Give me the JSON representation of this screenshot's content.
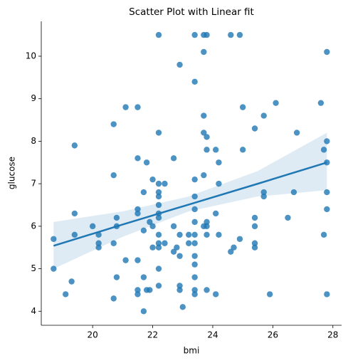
{
  "chart_data": {
    "type": "scatter",
    "title": "Scatter Plot with Linear fit",
    "xlabel": "bmi",
    "ylabel": "glucose",
    "color": "#1f77b4",
    "x": [
      18.7,
      18.7,
      19.1,
      19.3,
      19.4,
      19.4,
      19.4,
      20.0,
      20.2,
      20.2,
      20.2,
      20.7,
      20.7,
      20.7,
      20.7,
      20.8,
      20.8,
      20.8,
      21.1,
      21.1,
      21.5,
      21.5,
      21.5,
      21.5,
      21.5,
      21.5,
      21.5,
      21.7,
      21.7,
      21.7,
      21.7,
      21.8,
      21.8,
      21.9,
      21.9,
      22.0,
      22.0,
      22.0,
      22.2,
      22.2,
      22.2,
      22.2,
      22.2,
      22.2,
      22.2,
      22.2,
      22.2,
      22.2,
      22.2,
      22.2,
      22.2,
      22.4,
      22.4,
      22.7,
      22.7,
      22.7,
      22.8,
      22.9,
      22.9,
      22.9,
      22.9,
      22.9,
      23.0,
      23.2,
      23.2,
      23.4,
      23.4,
      23.4,
      23.4,
      23.4,
      23.4,
      23.4,
      23.4,
      23.4,
      23.4,
      23.4,
      23.4,
      23.4,
      23.7,
      23.7,
      23.7,
      23.7,
      23.7,
      23.7,
      23.8,
      23.8,
      23.8,
      23.8,
      23.8,
      23.8,
      23.8,
      24.1,
      24.1,
      24.1,
      24.2,
      24.2,
      24.2,
      24.6,
      24.6,
      24.7,
      24.9,
      24.9,
      25.0,
      25.0,
      25.4,
      25.4,
      25.4,
      25.4,
      25.4,
      25.7,
      25.7,
      25.7,
      25.9,
      26.1,
      26.5,
      26.7,
      26.8,
      27.6,
      27.7,
      27.7,
      27.8,
      27.8,
      27.8,
      27.8,
      27.8,
      27.8
    ],
    "y": [
      5.7,
      5.0,
      4.4,
      4.7,
      7.9,
      6.3,
      5.8,
      6.0,
      5.8,
      5.6,
      5.5,
      8.4,
      7.2,
      5.6,
      4.3,
      6.2,
      6.0,
      4.8,
      5.2,
      8.8,
      8.8,
      7.6,
      6.4,
      6.3,
      5.2,
      4.5,
      4.4,
      6.8,
      5.9,
      4.8,
      4.0,
      7.5,
      4.5,
      4.5,
      6.1,
      7.1,
      5.5,
      6.0,
      10.5,
      8.2,
      7.0,
      6.8,
      6.7,
      6.5,
      6.3,
      6.2,
      5.8,
      5.6,
      5.5,
      5.0,
      4.6,
      7.0,
      5.6,
      7.6,
      6.0,
      5.4,
      5.5,
      9.8,
      5.8,
      5.3,
      4.6,
      4.5,
      4.1,
      5.6,
      5.8,
      10.5,
      9.4,
      7.1,
      6.7,
      6.4,
      6.1,
      5.8,
      5.6,
      5.3,
      5.1,
      4.8,
      4.5,
      4.4,
      10.5,
      10.1,
      8.6,
      8.2,
      7.2,
      6.0,
      10.5,
      8.1,
      7.8,
      6.1,
      5.8,
      4.5,
      6.0,
      7.8,
      6.3,
      4.4,
      7.5,
      7.0,
      5.8,
      10.5,
      5.4,
      5.5,
      10.5,
      5.7,
      8.8,
      7.8,
      8.3,
      6.2,
      6.0,
      5.6,
      5.5,
      8.6,
      6.8,
      6.7,
      4.4,
      8.9,
      6.2,
      6.8,
      8.2,
      8.9,
      5.8,
      7.8,
      10.1,
      8.0,
      7.5,
      6.8,
      6.4,
      4.4
    ],
    "fit": {
      "x": [
        18.7,
        21.0,
        23.2,
        25.5,
        27.8
      ],
      "y": [
        5.54,
        6.04,
        6.51,
        7.0,
        7.5
      ],
      "lower": [
        5.0,
        5.75,
        6.35,
        6.7,
        6.85
      ],
      "upper": [
        6.1,
        6.35,
        6.7,
        7.3,
        8.2
      ]
    },
    "xlim": [
      18.29,
      28.29
    ],
    "ylim": [
      3.67,
      10.82
    ],
    "xticks": [
      20,
      22,
      24,
      26,
      28
    ],
    "yticks": [
      4,
      5,
      6,
      7,
      8,
      9,
      10
    ]
  }
}
